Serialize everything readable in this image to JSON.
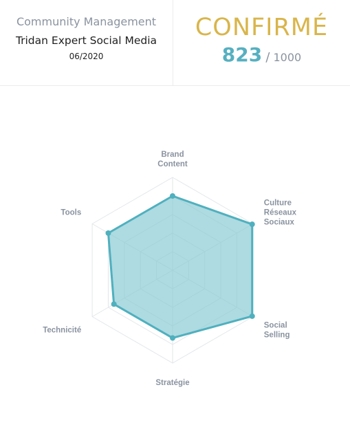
{
  "header": {
    "category": "Community Management",
    "title": "Tridan Expert Social Media",
    "date": "06/2020",
    "level": "CONFIRMÉ",
    "score": "823",
    "score_separator": "/",
    "score_max": "1000"
  },
  "colors": {
    "level": "#d9b54a",
    "score": "#56b0c0",
    "series_line": "#4fb0be",
    "series_fill": "#8ccad4",
    "grid": "#e3e6ea"
  },
  "chart_data": {
    "type": "radar",
    "axes": [
      [
        "Brand",
        "Content"
      ],
      [
        "Culture",
        "Réseaux",
        "Sociaux"
      ],
      [
        "Social",
        "Selling"
      ],
      [
        "Stratégie"
      ],
      [
        "Technicité"
      ],
      [
        "Tools"
      ]
    ],
    "values": [
      0.8,
      0.99,
      0.99,
      0.73,
      0.73,
      0.8
    ],
    "rmax": 1,
    "grid_levels": 5,
    "legend": "none"
  }
}
